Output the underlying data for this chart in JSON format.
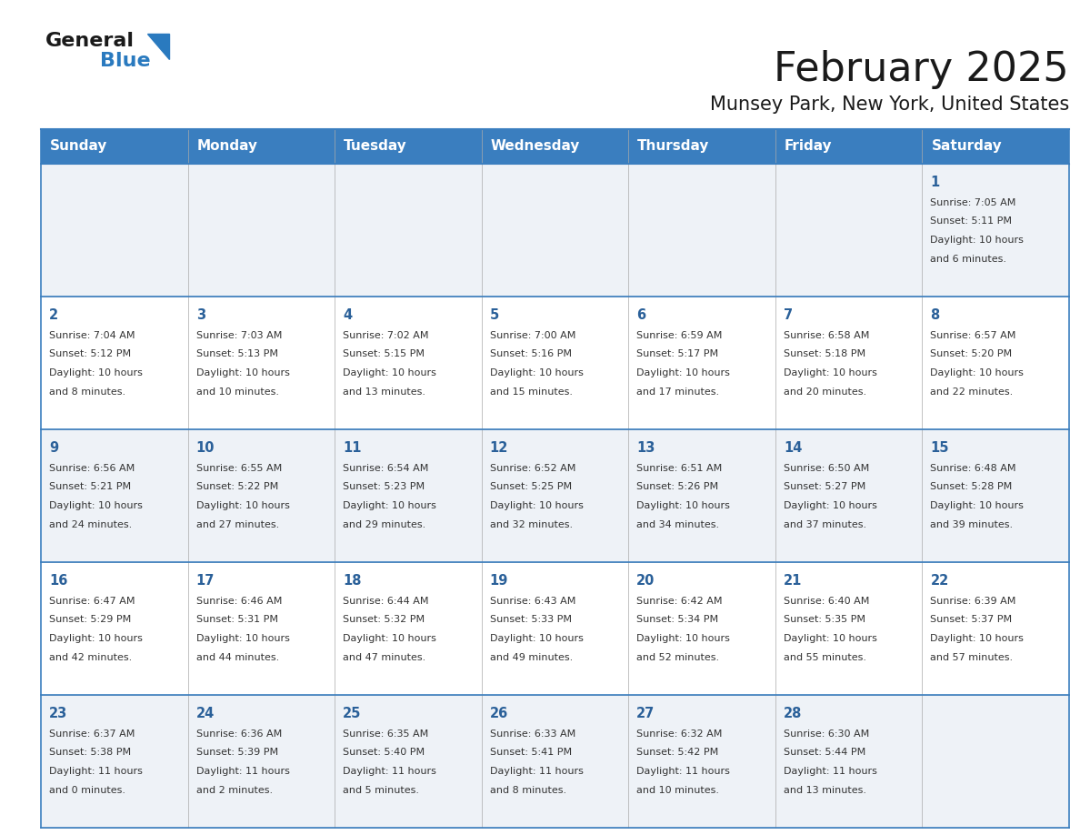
{
  "title": "February 2025",
  "subtitle": "Munsey Park, New York, United States",
  "header_bg": "#3a7ebf",
  "header_text_color": "#ffffff",
  "border_color": "#3a7ebf",
  "cell_border_color": "#aaaaaa",
  "days_of_week": [
    "Sunday",
    "Monday",
    "Tuesday",
    "Wednesday",
    "Thursday",
    "Friday",
    "Saturday"
  ],
  "calendar": [
    [
      null,
      null,
      null,
      null,
      null,
      null,
      {
        "day": "1",
        "sunrise": "Sunrise: 7:05 AM",
        "sunset": "Sunset: 5:11 PM",
        "daylight": "Daylight: 10 hours",
        "daylight2": "and 6 minutes."
      }
    ],
    [
      {
        "day": "2",
        "sunrise": "Sunrise: 7:04 AM",
        "sunset": "Sunset: 5:12 PM",
        "daylight": "Daylight: 10 hours",
        "daylight2": "and 8 minutes."
      },
      {
        "day": "3",
        "sunrise": "Sunrise: 7:03 AM",
        "sunset": "Sunset: 5:13 PM",
        "daylight": "Daylight: 10 hours",
        "daylight2": "and 10 minutes."
      },
      {
        "day": "4",
        "sunrise": "Sunrise: 7:02 AM",
        "sunset": "Sunset: 5:15 PM",
        "daylight": "Daylight: 10 hours",
        "daylight2": "and 13 minutes."
      },
      {
        "day": "5",
        "sunrise": "Sunrise: 7:00 AM",
        "sunset": "Sunset: 5:16 PM",
        "daylight": "Daylight: 10 hours",
        "daylight2": "and 15 minutes."
      },
      {
        "day": "6",
        "sunrise": "Sunrise: 6:59 AM",
        "sunset": "Sunset: 5:17 PM",
        "daylight": "Daylight: 10 hours",
        "daylight2": "and 17 minutes."
      },
      {
        "day": "7",
        "sunrise": "Sunrise: 6:58 AM",
        "sunset": "Sunset: 5:18 PM",
        "daylight": "Daylight: 10 hours",
        "daylight2": "and 20 minutes."
      },
      {
        "day": "8",
        "sunrise": "Sunrise: 6:57 AM",
        "sunset": "Sunset: 5:20 PM",
        "daylight": "Daylight: 10 hours",
        "daylight2": "and 22 minutes."
      }
    ],
    [
      {
        "day": "9",
        "sunrise": "Sunrise: 6:56 AM",
        "sunset": "Sunset: 5:21 PM",
        "daylight": "Daylight: 10 hours",
        "daylight2": "and 24 minutes."
      },
      {
        "day": "10",
        "sunrise": "Sunrise: 6:55 AM",
        "sunset": "Sunset: 5:22 PM",
        "daylight": "Daylight: 10 hours",
        "daylight2": "and 27 minutes."
      },
      {
        "day": "11",
        "sunrise": "Sunrise: 6:54 AM",
        "sunset": "Sunset: 5:23 PM",
        "daylight": "Daylight: 10 hours",
        "daylight2": "and 29 minutes."
      },
      {
        "day": "12",
        "sunrise": "Sunrise: 6:52 AM",
        "sunset": "Sunset: 5:25 PM",
        "daylight": "Daylight: 10 hours",
        "daylight2": "and 32 minutes."
      },
      {
        "day": "13",
        "sunrise": "Sunrise: 6:51 AM",
        "sunset": "Sunset: 5:26 PM",
        "daylight": "Daylight: 10 hours",
        "daylight2": "and 34 minutes."
      },
      {
        "day": "14",
        "sunrise": "Sunrise: 6:50 AM",
        "sunset": "Sunset: 5:27 PM",
        "daylight": "Daylight: 10 hours",
        "daylight2": "and 37 minutes."
      },
      {
        "day": "15",
        "sunrise": "Sunrise: 6:48 AM",
        "sunset": "Sunset: 5:28 PM",
        "daylight": "Daylight: 10 hours",
        "daylight2": "and 39 minutes."
      }
    ],
    [
      {
        "day": "16",
        "sunrise": "Sunrise: 6:47 AM",
        "sunset": "Sunset: 5:29 PM",
        "daylight": "Daylight: 10 hours",
        "daylight2": "and 42 minutes."
      },
      {
        "day": "17",
        "sunrise": "Sunrise: 6:46 AM",
        "sunset": "Sunset: 5:31 PM",
        "daylight": "Daylight: 10 hours",
        "daylight2": "and 44 minutes."
      },
      {
        "day": "18",
        "sunrise": "Sunrise: 6:44 AM",
        "sunset": "Sunset: 5:32 PM",
        "daylight": "Daylight: 10 hours",
        "daylight2": "and 47 minutes."
      },
      {
        "day": "19",
        "sunrise": "Sunrise: 6:43 AM",
        "sunset": "Sunset: 5:33 PM",
        "daylight": "Daylight: 10 hours",
        "daylight2": "and 49 minutes."
      },
      {
        "day": "20",
        "sunrise": "Sunrise: 6:42 AM",
        "sunset": "Sunset: 5:34 PM",
        "daylight": "Daylight: 10 hours",
        "daylight2": "and 52 minutes."
      },
      {
        "day": "21",
        "sunrise": "Sunrise: 6:40 AM",
        "sunset": "Sunset: 5:35 PM",
        "daylight": "Daylight: 10 hours",
        "daylight2": "and 55 minutes."
      },
      {
        "day": "22",
        "sunrise": "Sunrise: 6:39 AM",
        "sunset": "Sunset: 5:37 PM",
        "daylight": "Daylight: 10 hours",
        "daylight2": "and 57 minutes."
      }
    ],
    [
      {
        "day": "23",
        "sunrise": "Sunrise: 6:37 AM",
        "sunset": "Sunset: 5:38 PM",
        "daylight": "Daylight: 11 hours",
        "daylight2": "and 0 minutes."
      },
      {
        "day": "24",
        "sunrise": "Sunrise: 6:36 AM",
        "sunset": "Sunset: 5:39 PM",
        "daylight": "Daylight: 11 hours",
        "daylight2": "and 2 minutes."
      },
      {
        "day": "25",
        "sunrise": "Sunrise: 6:35 AM",
        "sunset": "Sunset: 5:40 PM",
        "daylight": "Daylight: 11 hours",
        "daylight2": "and 5 minutes."
      },
      {
        "day": "26",
        "sunrise": "Sunrise: 6:33 AM",
        "sunset": "Sunset: 5:41 PM",
        "daylight": "Daylight: 11 hours",
        "daylight2": "and 8 minutes."
      },
      {
        "day": "27",
        "sunrise": "Sunrise: 6:32 AM",
        "sunset": "Sunset: 5:42 PM",
        "daylight": "Daylight: 11 hours",
        "daylight2": "and 10 minutes."
      },
      {
        "day": "28",
        "sunrise": "Sunrise: 6:30 AM",
        "sunset": "Sunset: 5:44 PM",
        "daylight": "Daylight: 11 hours",
        "daylight2": "and 13 minutes."
      },
      null
    ]
  ],
  "logo_text1": "General",
  "logo_text2": "Blue",
  "logo_color1": "#1a1a1a",
  "logo_color2": "#2a7abf",
  "logo_triangle_color": "#2a7abf",
  "day_number_color": "#2a6099",
  "cell_text_color": "#333333",
  "title_color": "#1a1a1a",
  "subtitle_color": "#1a1a1a",
  "cell_bg": [
    "#eef2f7",
    "#ffffff",
    "#eef2f7",
    "#ffffff",
    "#eef2f7"
  ]
}
